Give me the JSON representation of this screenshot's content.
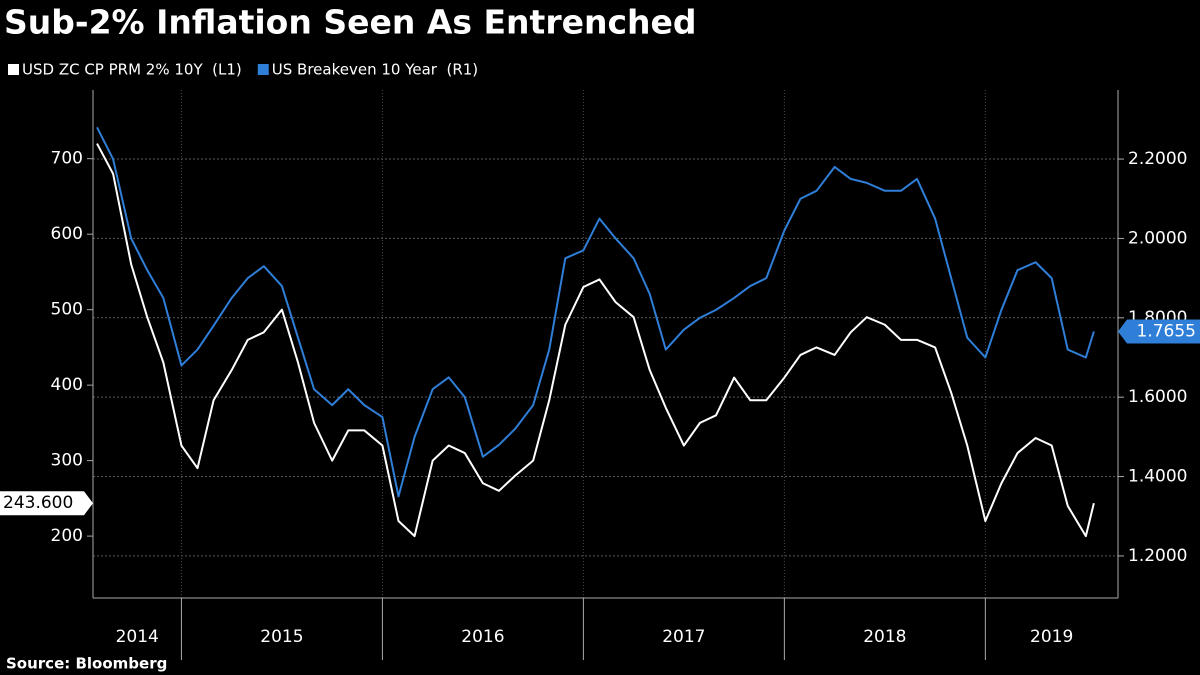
{
  "chart_data": {
    "type": "line",
    "title": "Sub-2% Inflation Seen As Entrenched",
    "source": "Source:  Bloomberg",
    "x": [
      2014.58,
      2014.66,
      2014.75,
      2014.83,
      2014.91,
      2015.0,
      2015.08,
      2015.16,
      2015.25,
      2015.33,
      2015.41,
      2015.5,
      2015.58,
      2015.66,
      2015.75,
      2015.83,
      2015.91,
      2016.0,
      2016.08,
      2016.16,
      2016.25,
      2016.33,
      2016.41,
      2016.5,
      2016.58,
      2016.66,
      2016.75,
      2016.83,
      2016.91,
      2017.0,
      2017.08,
      2017.16,
      2017.25,
      2017.33,
      2017.41,
      2017.5,
      2017.58,
      2017.66,
      2017.75,
      2017.83,
      2017.91,
      2018.0,
      2018.08,
      2018.16,
      2018.25,
      2018.33,
      2018.41,
      2018.5,
      2018.58,
      2018.66,
      2018.75,
      2018.83,
      2018.91,
      2019.0,
      2019.08,
      2019.16,
      2019.25,
      2019.33,
      2019.41,
      2019.5,
      2019.54
    ],
    "series": [
      {
        "name": "USD ZC CP PRM 2% 10Y  (L1)",
        "color": "#ffffff",
        "axis": "y",
        "last_label": "243.600",
        "values": [
          720,
          680,
          560,
          490,
          430,
          320,
          290,
          380,
          420,
          460,
          470,
          500,
          430,
          350,
          300,
          340,
          340,
          320,
          220,
          200,
          300,
          320,
          310,
          270,
          260,
          280,
          300,
          380,
          480,
          530,
          540,
          510,
          490,
          420,
          370,
          320,
          350,
          360,
          410,
          380,
          380,
          410,
          440,
          450,
          440,
          470,
          490,
          480,
          460,
          460,
          450,
          390,
          320,
          220,
          270,
          310,
          330,
          320,
          240,
          200,
          243.6
        ]
      },
      {
        "name": "US Breakeven 10 Year  (R1)",
        "color": "#2f7ed8",
        "axis": "y2",
        "last_label": "1.7655",
        "values": [
          2.28,
          2.2,
          2.0,
          1.92,
          1.85,
          1.68,
          1.72,
          1.78,
          1.85,
          1.9,
          1.93,
          1.88,
          1.75,
          1.62,
          1.58,
          1.62,
          1.58,
          1.55,
          1.35,
          1.5,
          1.62,
          1.65,
          1.6,
          1.45,
          1.48,
          1.52,
          1.58,
          1.72,
          1.95,
          1.97,
          2.05,
          2.0,
          1.95,
          1.86,
          1.72,
          1.77,
          1.8,
          1.82,
          1.85,
          1.88,
          1.9,
          2.02,
          2.1,
          2.12,
          2.18,
          2.15,
          2.14,
          2.12,
          2.12,
          2.15,
          2.05,
          1.9,
          1.75,
          1.7,
          1.82,
          1.92,
          1.94,
          1.9,
          1.72,
          1.7,
          1.7655
        ]
      }
    ],
    "xlim": [
      2014.56,
      2019.66
    ],
    "xticks": [
      2014,
      2015,
      2016,
      2017,
      2018,
      2019
    ],
    "ylim": [
      118,
      791
    ],
    "yticks": [
      200,
      300,
      400,
      500,
      600,
      700
    ],
    "y2lim": [
      1.094,
      2.374
    ],
    "y2ticks": [
      {
        "value": 1.2,
        "label": "1.2000"
      },
      {
        "value": 1.4,
        "label": "1.4000"
      },
      {
        "value": 1.6,
        "label": "1.6000"
      },
      {
        "value": 1.8,
        "label": "1.8000"
      },
      {
        "value": 2.0,
        "label": "2.0000"
      },
      {
        "value": 2.2,
        "label": "2.2000"
      }
    ],
    "grid": true
  }
}
